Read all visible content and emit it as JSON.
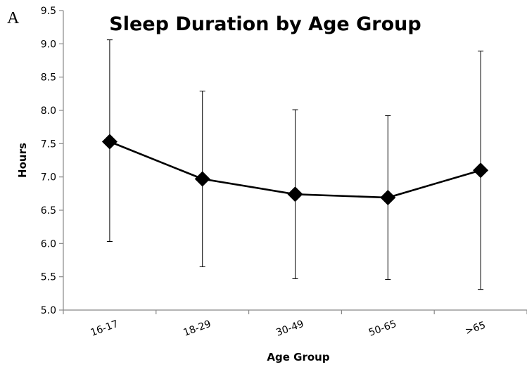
{
  "panel_letter": "A",
  "chart_data": {
    "type": "line",
    "title": "Sleep Duration by Age Group",
    "xlabel": "Age Group",
    "ylabel": "Hours",
    "categories": [
      "16-17",
      "18-29",
      "30-49",
      "50-65",
      ">65"
    ],
    "series": [
      {
        "values": [
          7.53,
          6.97,
          6.74,
          6.69,
          7.1
        ],
        "error_upper": [
          9.06,
          8.29,
          8.01,
          7.92,
          8.89
        ],
        "error_lower": [
          6.03,
          5.65,
          5.47,
          5.46,
          5.31
        ]
      }
    ],
    "ylim": [
      5.0,
      9.5
    ],
    "yticks": [
      "5.0",
      "5.5",
      "6.0",
      "6.5",
      "7.0",
      "7.5",
      "8.0",
      "8.5",
      "9.0",
      "9.5"
    ],
    "grid": false,
    "marker": "diamond",
    "color": "#000000"
  }
}
